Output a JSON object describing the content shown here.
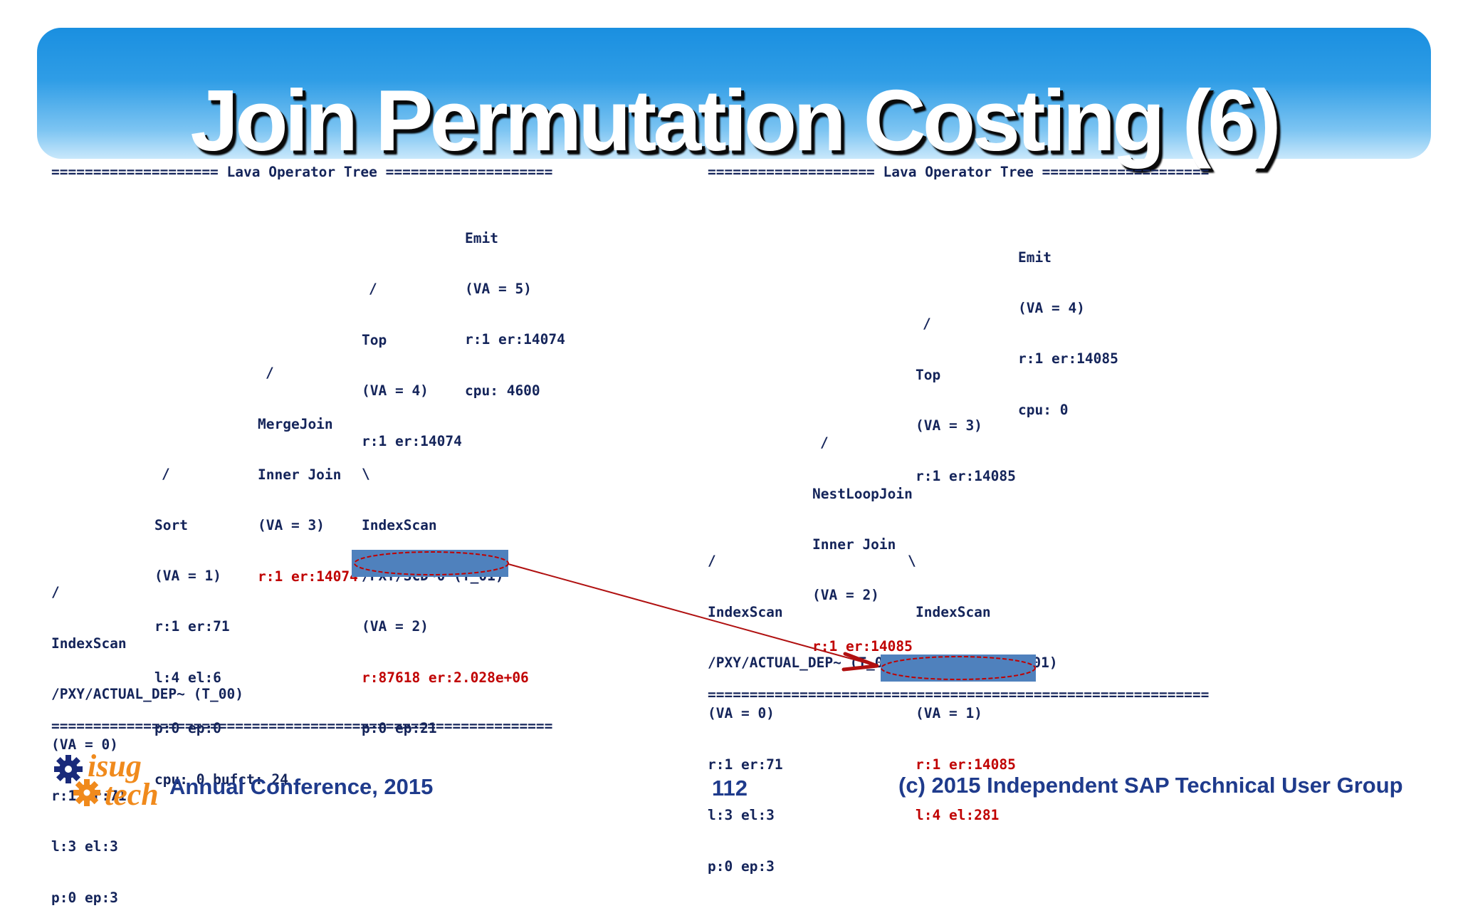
{
  "slide": {
    "title": "Join Permutation Costing (6)"
  },
  "left_tree": {
    "header": "==================== Lava Operator Tree ====================",
    "footer": "============================================================",
    "nodes": {
      "emit": [
        "Emit",
        "(VA = 5)",
        "r:1 er:14074",
        "cpu: 4600"
      ],
      "top_slash": "/",
      "top": [
        "Top",
        "(VA = 4)",
        "r:1 er:14074"
      ],
      "merge_slash": "/",
      "mergejoin": [
        "MergeJoin",
        "Inner Join",
        "(VA = 3)"
      ],
      "mergejoin_red": "r:1 er:14074",
      "sort_slash": "/",
      "sort": [
        "Sort",
        "(VA = 1)",
        "r:1 er:71",
        "l:4 el:6",
        "p:0 ep:0",
        "cpu: 0 bufct: 24"
      ],
      "idx2_slash": "\\",
      "indexscan2": [
        "IndexScan",
        "/PXY/SCD~0 (T_01)",
        "(VA = 2)"
      ],
      "indexscan2_red": "r:87618 er:2.028e+06",
      "indexscan2_hidden": "p:0 ep:21",
      "idx0_slash": "/",
      "indexscan0": [
        "IndexScan",
        "/PXY/ACTUAL_DEP~ (T_00)",
        "(VA = 0)",
        "r:1 er:71",
        "l:3 el:3",
        "p:0 ep:3"
      ]
    }
  },
  "right_tree": {
    "header": "==================== Lava Operator Tree ====================",
    "footer": "============================================================",
    "nodes": {
      "emit": [
        "Emit",
        "(VA = 4)",
        "r:1 er:14085",
        "cpu: 0"
      ],
      "top_slash": "/",
      "top": [
        "Top",
        "(VA = 3)",
        "r:1 er:14085"
      ],
      "nlj_slash": "/",
      "nestloopjoin": [
        "NestLoopJoin",
        "Inner Join",
        "(VA = 2)"
      ],
      "nestloopjoin_red": "r:1 er:14085",
      "idx0_slash": "/",
      "indexscan0": [
        "IndexScan",
        "/PXY/ACTUAL_DEP~ (T_00)",
        "(VA = 0)",
        "r:1 er:71",
        "l:3 el:3",
        "p:0 ep:3"
      ],
      "idx1_slash": "\\",
      "indexscan1": [
        "IndexScan",
        "/PXY/SCD~0 (T_01)",
        "(VA = 1)"
      ],
      "indexscan1_red": [
        "r:1 er:14085",
        "l:4 el:281"
      ]
    }
  },
  "footer": {
    "logo_top": "isug",
    "logo_bottom": "tech",
    "conference": "Annual Conference, 2015",
    "page_number": "112",
    "copyright": "(c) 2015 Independent SAP Technical User Group"
  },
  "colors": {
    "banner_top": "#1a8fe0",
    "tree_text": "#14245a",
    "highlight_red": "#c00000",
    "box_blue": "#4f81bd",
    "footer_blue": "#1f3b8c",
    "logo_orange": "#f08a1c",
    "logo_gear_blue": "#1a2a7a"
  }
}
